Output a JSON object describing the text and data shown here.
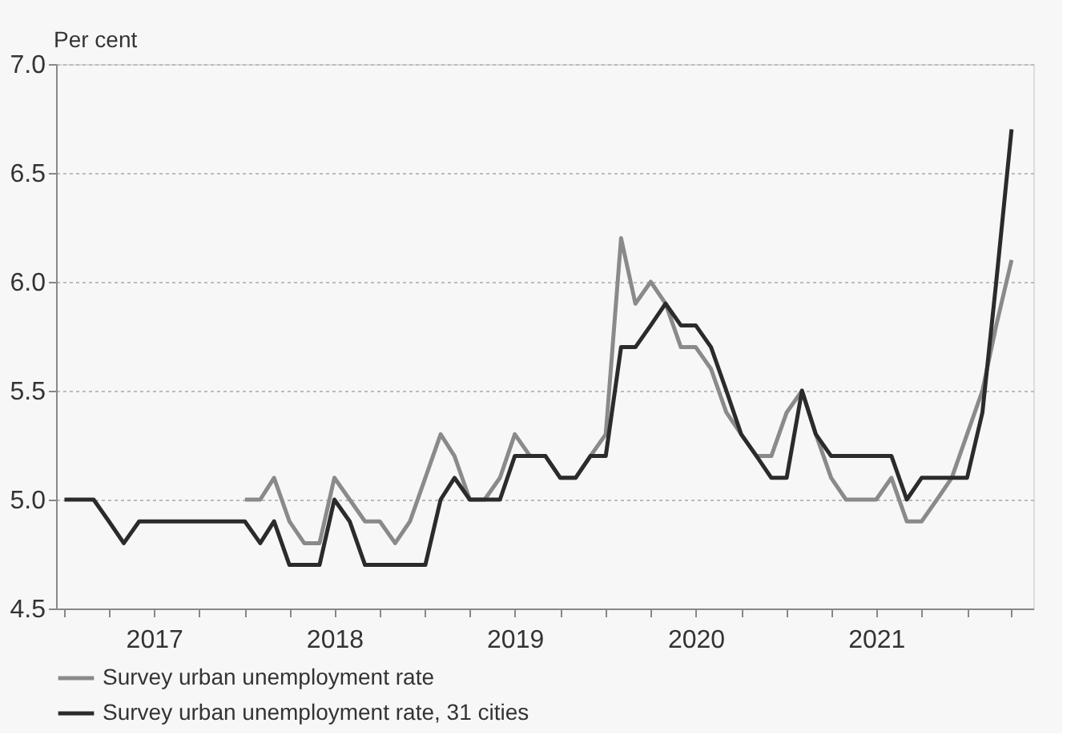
{
  "chart_data": {
    "type": "line",
    "ylabel": "Per cent",
    "x": [
      "2017-01",
      "2017-02",
      "2017-03",
      "2017-04",
      "2017-05",
      "2017-06",
      "2017-07",
      "2017-08",
      "2017-09",
      "2017-10",
      "2017-11",
      "2017-12",
      "2018-01",
      "2018-02",
      "2018-03",
      "2018-04",
      "2018-05",
      "2018-06",
      "2018-07",
      "2018-08",
      "2018-09",
      "2018-10",
      "2018-11",
      "2018-12",
      "2019-01",
      "2019-02",
      "2019-03",
      "2019-04",
      "2019-05",
      "2019-06",
      "2019-07",
      "2019-08",
      "2019-09",
      "2019-10",
      "2019-11",
      "2019-12",
      "2020-01",
      "2020-02",
      "2020-03",
      "2020-04",
      "2020-05",
      "2020-06",
      "2020-07",
      "2020-08",
      "2020-09",
      "2020-10",
      "2020-11",
      "2020-12",
      "2021-01",
      "2021-02",
      "2021-03",
      "2021-04",
      "2021-05",
      "2021-06",
      "2021-07",
      "2021-08",
      "2021-09",
      "2021-10",
      "2021-11",
      "2021-12",
      "2022-01",
      "2022-02",
      "2022-03",
      "2022-04"
    ],
    "series": [
      {
        "name": "Survey urban unemployment rate",
        "color": "#8a8a8a",
        "values": [
          null,
          null,
          null,
          null,
          null,
          null,
          null,
          null,
          null,
          null,
          null,
          null,
          5.0,
          5.0,
          5.1,
          4.9,
          4.8,
          4.8,
          5.1,
          5.0,
          4.9,
          4.9,
          4.8,
          4.9,
          5.1,
          5.3,
          5.2,
          5.0,
          5.0,
          5.1,
          5.3,
          5.2,
          5.2,
          5.1,
          5.1,
          5.2,
          5.3,
          6.2,
          5.9,
          6.0,
          5.9,
          5.7,
          5.7,
          5.6,
          5.4,
          5.3,
          5.2,
          5.2,
          5.4,
          5.5,
          5.3,
          5.1,
          5.0,
          5.0,
          5.0,
          5.1,
          4.9,
          4.9,
          5.0,
          5.1,
          5.3,
          5.5,
          5.8,
          6.1
        ]
      },
      {
        "name": "Survey urban unemployment rate, 31 cities",
        "color": "#2b2b2b",
        "values": [
          5.0,
          5.0,
          5.0,
          4.9,
          4.8,
          4.9,
          4.9,
          4.9,
          4.9,
          4.9,
          4.9,
          4.9,
          4.9,
          4.8,
          4.9,
          4.7,
          4.7,
          4.7,
          5.0,
          4.9,
          4.7,
          4.7,
          4.7,
          4.7,
          4.7,
          5.0,
          5.1,
          5.0,
          5.0,
          5.0,
          5.2,
          5.2,
          5.2,
          5.1,
          5.1,
          5.2,
          5.2,
          5.7,
          5.7,
          5.8,
          5.9,
          5.8,
          5.8,
          5.7,
          5.5,
          5.3,
          5.2,
          5.1,
          5.1,
          5.5,
          5.3,
          5.2,
          5.2,
          5.2,
          5.2,
          5.2,
          5.0,
          5.1,
          5.1,
          5.1,
          5.1,
          5.4,
          6.0,
          6.7
        ]
      }
    ],
    "xlim": [
      "2016-12-15",
      "2022-05-15"
    ],
    "xticks": [
      {
        "value": "2017-01-01",
        "label": null
      },
      {
        "value": "2017-04-01",
        "label": null
      },
      {
        "value": "2017-07-01",
        "label": "2017"
      },
      {
        "value": "2017-10-01",
        "label": null
      },
      {
        "value": "2018-01-01",
        "label": null
      },
      {
        "value": "2018-04-01",
        "label": null
      },
      {
        "value": "2018-07-01",
        "label": "2018"
      },
      {
        "value": "2018-10-01",
        "label": null
      },
      {
        "value": "2019-01-01",
        "label": null
      },
      {
        "value": "2019-04-01",
        "label": null
      },
      {
        "value": "2019-07-01",
        "label": "2019"
      },
      {
        "value": "2019-10-01",
        "label": null
      },
      {
        "value": "2020-01-01",
        "label": null
      },
      {
        "value": "2020-04-01",
        "label": null
      },
      {
        "value": "2020-07-01",
        "label": "2020"
      },
      {
        "value": "2020-10-01",
        "label": null
      },
      {
        "value": "2021-01-01",
        "label": null
      },
      {
        "value": "2021-04-01",
        "label": null
      },
      {
        "value": "2021-07-01",
        "label": "2021"
      },
      {
        "value": "2021-10-01",
        "label": null
      },
      {
        "value": "2022-01-01",
        "label": null
      },
      {
        "value": "2022-04-01",
        "label": null
      }
    ],
    "ylim": [
      4.5,
      7.0
    ],
    "yticks": [
      {
        "value": 4.5,
        "label": "4.5"
      },
      {
        "value": 5.0,
        "label": "5.0"
      },
      {
        "value": 5.5,
        "label": "5.5"
      },
      {
        "value": 6.0,
        "label": "6.0"
      },
      {
        "value": 6.5,
        "label": "6.5"
      },
      {
        "value": 7.0,
        "label": "7.0"
      }
    ],
    "grid": "y",
    "legend": "bottom",
    "line_style": "solid",
    "marker": "none"
  }
}
